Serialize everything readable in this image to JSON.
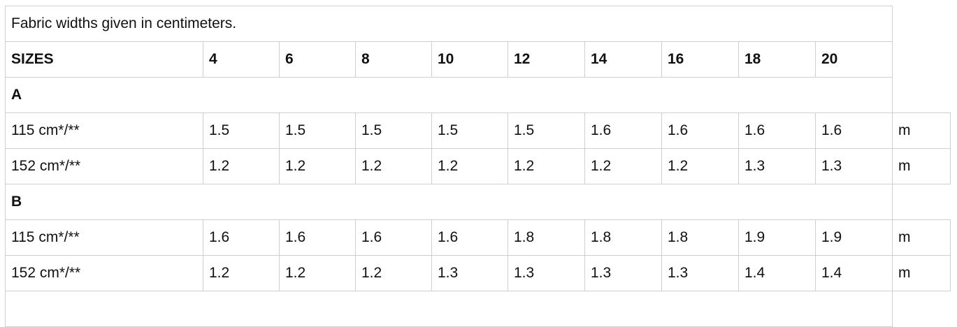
{
  "caption": "Fabric widths given in centimeters.",
  "header": {
    "label": "SIZES",
    "sizes": [
      "4",
      "6",
      "8",
      "10",
      "12",
      "14",
      "16",
      "18",
      "20"
    ]
  },
  "groups": [
    {
      "name": "A",
      "rows": [
        {
          "label": "115 cm*/**",
          "values": [
            "1.5",
            "1.5",
            "1.5",
            "1.5",
            "1.5",
            "1.6",
            "1.6",
            "1.6",
            "1.6"
          ],
          "unit": "m"
        },
        {
          "label": "152 cm*/**",
          "values": [
            "1.2",
            "1.2",
            "1.2",
            "1.2",
            "1.2",
            "1.2",
            "1.2",
            "1.3",
            "1.3"
          ],
          "unit": "m"
        }
      ]
    },
    {
      "name": "B",
      "rows": [
        {
          "label": "115 cm*/**",
          "values": [
            "1.6",
            "1.6",
            "1.6",
            "1.6",
            "1.8",
            "1.8",
            "1.8",
            "1.9",
            "1.9"
          ],
          "unit": "m"
        },
        {
          "label": "152 cm*/**",
          "values": [
            "1.2",
            "1.2",
            "1.2",
            "1.3",
            "1.3",
            "1.3",
            "1.3",
            "1.4",
            "1.4"
          ],
          "unit": "m"
        }
      ]
    }
  ]
}
